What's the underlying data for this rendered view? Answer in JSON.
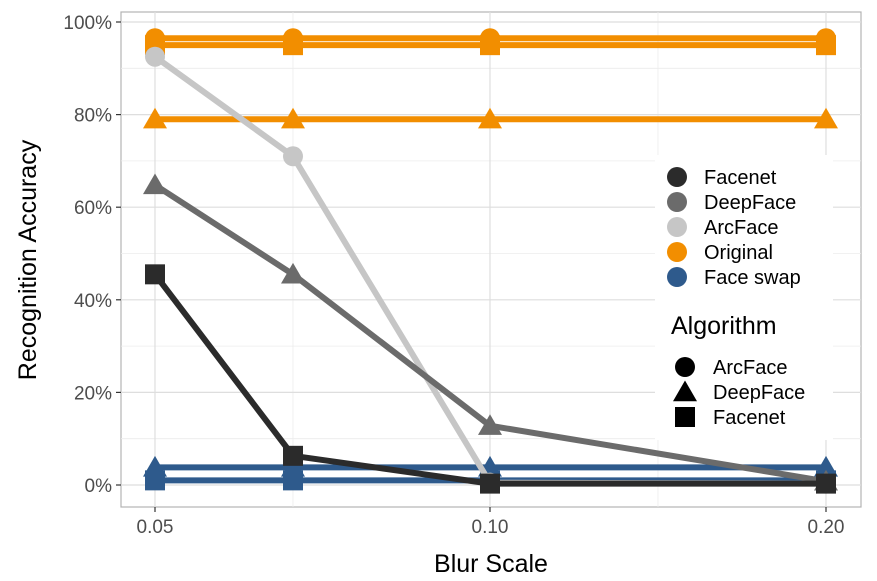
{
  "chart_data": {
    "type": "line",
    "title": "",
    "xlabel": "Blur Scale",
    "ylabel": "Recognition Accuracy",
    "x": [
      0.05,
      0.07,
      0.1,
      0.2
    ],
    "x_tick_labels": [
      "0.05",
      "0.10",
      "0.20"
    ],
    "x_tick_values": [
      0.05,
      0.1,
      0.2
    ],
    "y_tick_labels": [
      "0%",
      "20%",
      "40%",
      "60%",
      "80%",
      "100%"
    ],
    "y_tick_values": [
      0,
      20,
      40,
      60,
      80,
      100
    ],
    "ylim": [
      -2,
      101
    ],
    "grid": true,
    "legend_placement": "right-inside",
    "colors": {
      "Facenet": "#2b2b2b",
      "DeepFace": "#6b6b6b",
      "ArcFace": "#c6c6c6",
      "Original": "#f28e00",
      "Face swap": "#2e5a8c"
    },
    "series": [
      {
        "name": "Original ArcFace",
        "color_key": "Original",
        "shape": "circle",
        "values": [
          96.5,
          96.5,
          96.5,
          96.5
        ]
      },
      {
        "name": "Original Facenet",
        "color_key": "Original",
        "shape": "square",
        "values": [
          95.0,
          95.0,
          95.0,
          95.0
        ]
      },
      {
        "name": "Original DeepFace",
        "color_key": "Original",
        "shape": "triangle",
        "values": [
          79.0,
          79.0,
          79.0,
          79.0
        ]
      },
      {
        "name": "Face swap DeepFace",
        "color_key": "Face swap",
        "shape": "triangle",
        "values": [
          3.8,
          3.8,
          3.8,
          3.8
        ]
      },
      {
        "name": "Face swap Facenet",
        "color_key": "Face swap",
        "shape": "square",
        "values": [
          1.0,
          1.0,
          1.0,
          1.0
        ]
      },
      {
        "name": "ArcFace",
        "color_key": "ArcFace",
        "shape": "circle",
        "values": [
          92.5,
          71.0,
          0.5,
          0.3
        ]
      },
      {
        "name": "DeepFace",
        "color_key": "DeepFace",
        "shape": "triangle",
        "values": [
          64.8,
          45.5,
          12.8,
          0.8
        ]
      },
      {
        "name": "Facenet",
        "color_key": "Facenet",
        "shape": "square",
        "values": [
          45.5,
          6.3,
          0.3,
          0.3
        ]
      }
    ],
    "legend": {
      "color_entries": [
        "Facenet",
        "DeepFace",
        "ArcFace",
        "Original",
        "Face swap"
      ],
      "shape_title": "Algorithm",
      "shape_entries": [
        {
          "label": "ArcFace",
          "shape": "circle"
        },
        {
          "label": "DeepFace",
          "shape": "triangle"
        },
        {
          "label": "Facenet",
          "shape": "square"
        }
      ]
    }
  }
}
